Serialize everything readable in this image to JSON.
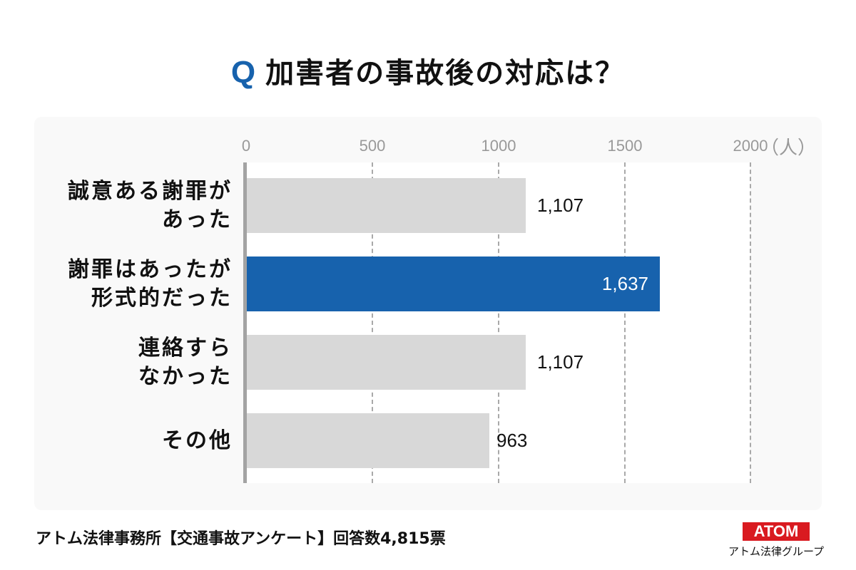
{
  "title": {
    "q_mark": "Q",
    "text": "加害者の事故後の対応は？"
  },
  "axis": {
    "ticks": [
      {
        "label": "0",
        "x": 345
      },
      {
        "label": "500",
        "x": 522
      },
      {
        "label": "1000",
        "x": 699
      },
      {
        "label": "1500",
        "x": 876
      },
      {
        "label": "2000",
        "x": 1052
      }
    ],
    "unit": "（人）"
  },
  "colors": {
    "highlight": "#1762ad",
    "default_bar": "#d8d8d8",
    "accent_q": "#1762ad",
    "logo": "#d91a20"
  },
  "footer": {
    "source": "アトム法律事務所【交通事故アンケート】回答数4,815票",
    "logo_text": "ATOM",
    "logo_sub": "アトム法律グループ"
  },
  "chart_data": {
    "type": "bar",
    "orientation": "horizontal",
    "title": "Q 加害者の事故後の対応は？",
    "categories": [
      "誠意ある謝罪があった",
      "謝罪はあったが形式的だった",
      "連絡すらなかった",
      "その他"
    ],
    "category_lines": [
      [
        "誠意ある謝罪が",
        "あった"
      ],
      [
        "謝罪はあったが",
        "形式的だった"
      ],
      [
        "連絡すら",
        "なかった"
      ],
      [
        "その他"
      ]
    ],
    "values": [
      1107,
      1637,
      1107,
      963
    ],
    "value_labels": [
      "1,107",
      "1,637",
      "1,107",
      "963"
    ],
    "highlight_index": 1,
    "xlabel": "（人）",
    "ylabel": "",
    "xlim": [
      0,
      2000
    ],
    "xticks": [
      0,
      500,
      1000,
      1500,
      2000
    ],
    "grid": "vertical dashed",
    "note": "アトム法律事務所【交通事故アンケート】回答数4,815票"
  }
}
